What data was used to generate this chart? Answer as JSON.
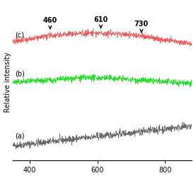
{
  "title": "",
  "xlabel": "",
  "ylabel": "Relative intensity",
  "xlim": [
    350,
    880
  ],
  "xticks": [
    400,
    600,
    800
  ],
  "xticklabels": [
    "400",
    "600",
    "800"
  ],
  "annotations": [
    {
      "text": "460",
      "x": 460
    },
    {
      "text": "610",
      "x": 610
    },
    {
      "text": "730",
      "x": 730
    }
  ],
  "labels": [
    "(a)",
    "(b)",
    "(c)"
  ],
  "colors": {
    "a": "#555555",
    "b": "#00dd00",
    "c": "#ee4444"
  },
  "offsets": {
    "a": 0.1,
    "b": 0.52,
    "c": 0.78
  },
  "seed": 42,
  "figsize": [
    2.77,
    2.52
  ],
  "dpi": 100
}
